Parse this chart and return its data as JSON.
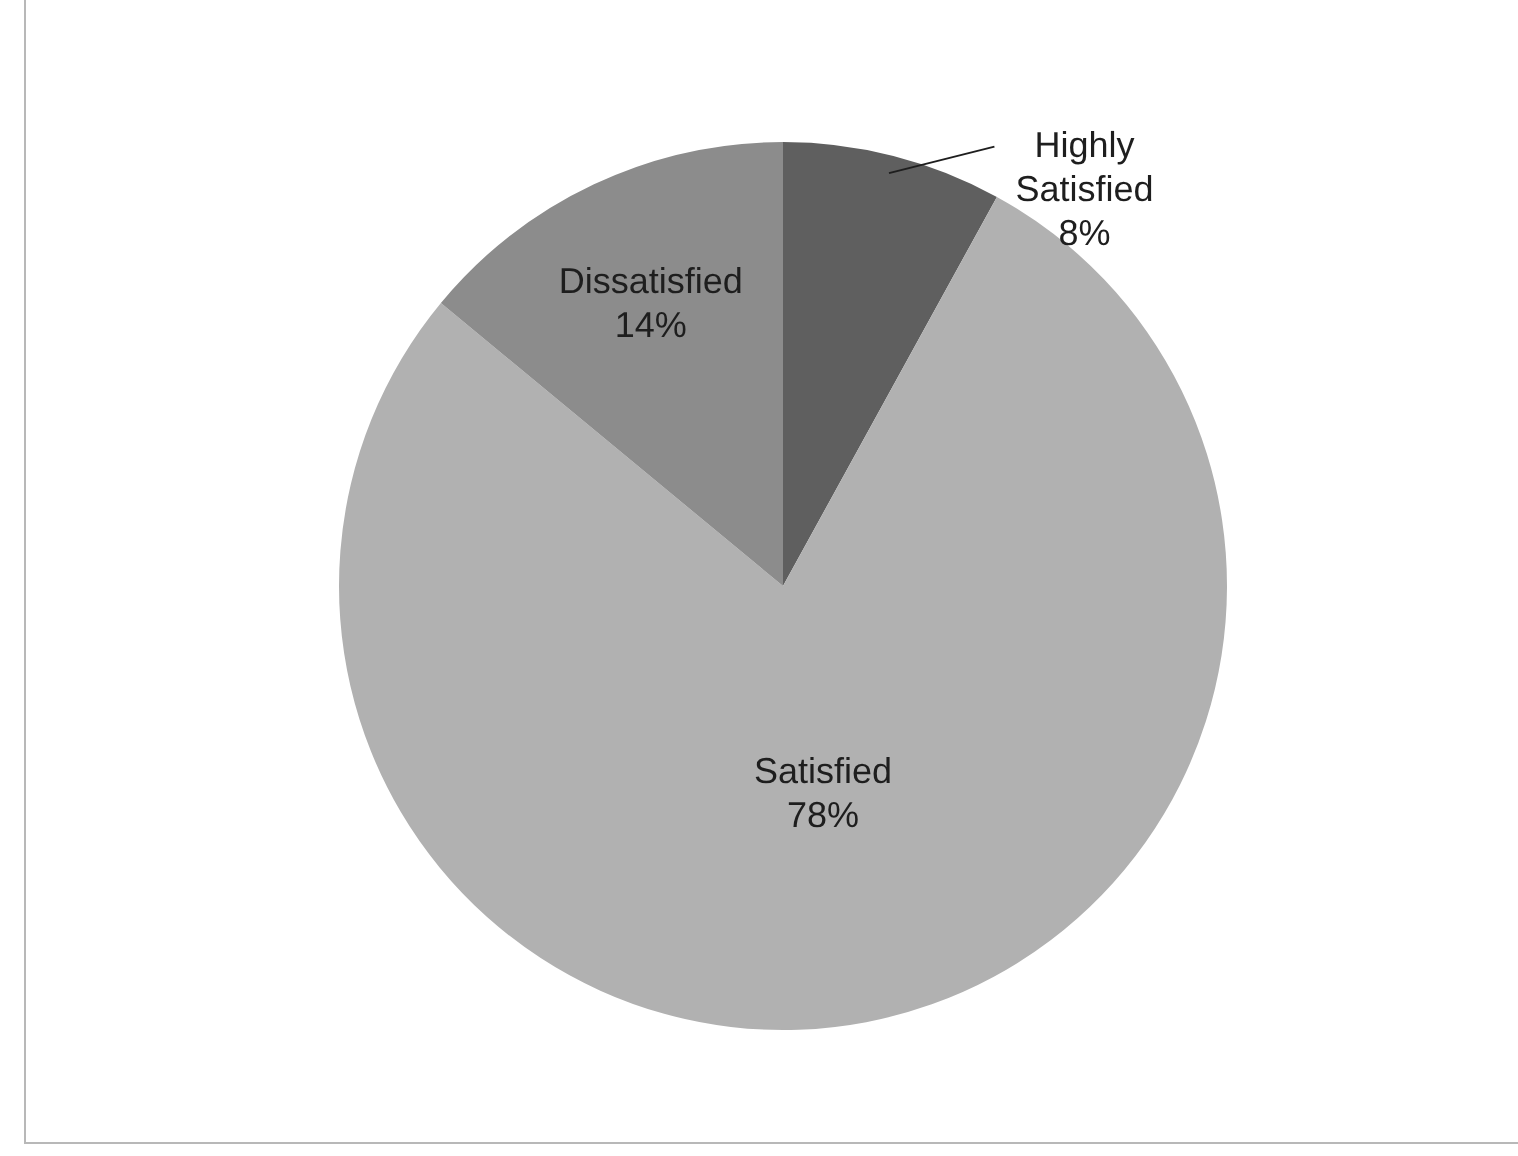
{
  "chart_data": {
    "type": "pie",
    "categories": [
      "Highly Satisfied",
      "Satisfied",
      "Dissatisfied"
    ],
    "values": [
      8,
      78,
      14
    ],
    "colors": [
      "#5f5f5f",
      "#b1b1b1",
      "#8c8c8c"
    ],
    "value_labels": [
      "8%",
      "78%",
      "14%"
    ],
    "legend": false
  }
}
